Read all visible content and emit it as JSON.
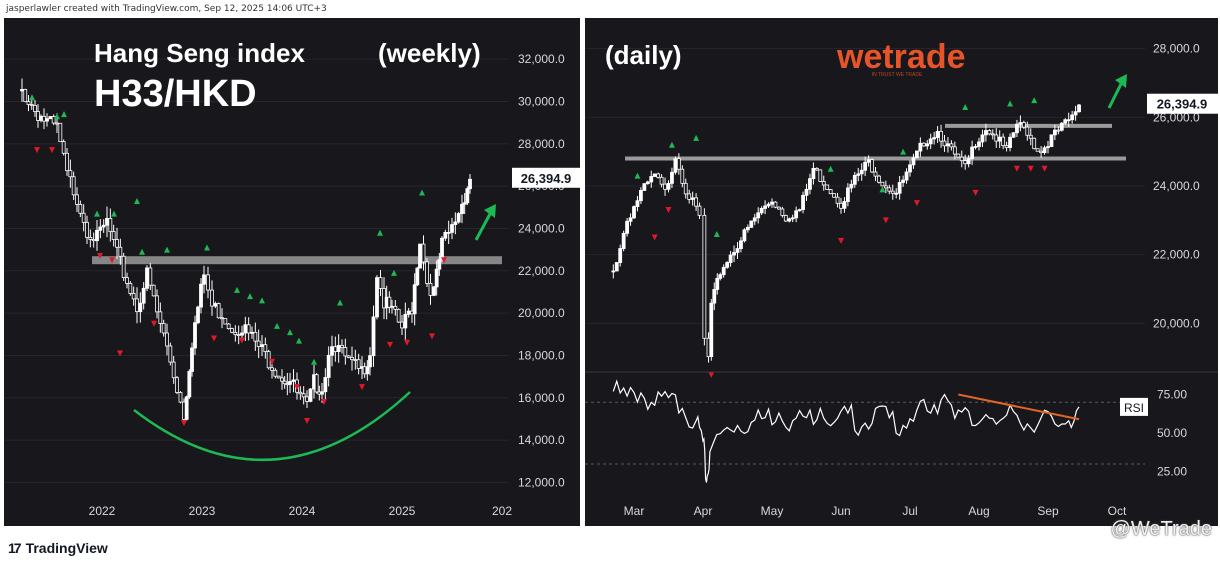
{
  "credit": "jasperlawler created with TradingView.com, Sep 12, 2025 14:06 UTC+3",
  "footer": {
    "brand": "TradingView",
    "watermark": "@WeTrade"
  },
  "logo": {
    "text": "wetrade",
    "tagline": "IN TRUST WE TRADE",
    "color": "#e8542a"
  },
  "colors": {
    "background": "#17171c",
    "candle": "#ffffff",
    "support": "#9a9a9a",
    "arc": "#1db954",
    "arrow": "#1db954",
    "trendline": "#e0662a",
    "up_marker": "#1db954",
    "down_marker": "#e0182a",
    "text": "#ffffff"
  },
  "chart_data": [
    {
      "type": "candlestick",
      "title": "Hang Seng index",
      "subtitle": "H33/HKD",
      "timeframe_label": "(weekly)",
      "x_ticks": [
        "2022",
        "2023",
        "2024",
        "2025",
        "202"
      ],
      "y_ticks": [
        "32,000.0",
        "30,000.0",
        "28,000.0",
        "26,000.0",
        "24,000.0",
        "22,000.0",
        "20,000.0",
        "18,000.0",
        "16,000.0",
        "14,000.0",
        "12,000.0"
      ],
      "ylim": [
        11500,
        33000
      ],
      "last_price": 26394.9,
      "last_price_label": "26,394.9",
      "support_level": 22500,
      "series": [
        {
          "x": [
            2021.2,
            2021.33,
            2021.45,
            2021.55,
            2021.65,
            2021.75,
            2021.85,
            2021.95,
            2022.05,
            2022.15,
            2022.25,
            2022.35,
            2022.45,
            2022.55,
            2022.65,
            2022.75,
            2022.82,
            2022.9,
            2023.02,
            2023.1,
            2023.2,
            2023.3,
            2023.4,
            2023.5,
            2023.6,
            2023.7,
            2023.8,
            2023.88,
            2023.95,
            2024.05,
            2024.12,
            2024.2,
            2024.3,
            2024.4,
            2024.5,
            2024.6,
            2024.68,
            2024.75,
            2024.82,
            2024.9,
            2025.0,
            2025.1,
            2025.18,
            2025.25,
            2025.32,
            2025.4,
            2025.5,
            2025.6,
            2025.68
          ],
          "y": [
            30500,
            29600,
            29000,
            28700,
            26500,
            25500,
            24000,
            23500,
            24300,
            22700,
            21500,
            20300,
            21800,
            20000,
            18400,
            16500,
            15200,
            18700,
            21800,
            20300,
            20000,
            19300,
            19400,
            18800,
            18200,
            17600,
            17000,
            16800,
            16200,
            15500,
            16700,
            16500,
            18800,
            18000,
            17500,
            17200,
            18200,
            21900,
            20500,
            20000,
            19300,
            20300,
            23500,
            21500,
            21000,
            23200,
            24000,
            25200,
            26394.9
          ]
        }
      ]
    },
    {
      "type": "candlestick",
      "timeframe_label": "(daily)",
      "x_ticks": [
        "Mar",
        "Apr",
        "May",
        "Jun",
        "Jul",
        "Aug",
        "Sep",
        "Oct"
      ],
      "y_ticks": [
        "28,000.0",
        "26,000.0",
        "24,000.0",
        "22,000.0",
        "20,000.0"
      ],
      "ylim": [
        18700,
        28600
      ],
      "last_price": 26394.9,
      "last_price_label": "26,394.9",
      "resistance_levels": [
        24800,
        25750
      ],
      "series": [
        {
          "x": [
            2.7,
            2.9,
            3.1,
            3.3,
            3.45,
            3.6,
            3.75,
            3.95,
            4.02,
            4.08,
            4.12,
            4.25,
            4.4,
            4.6,
            4.8,
            5.0,
            5.2,
            5.4,
            5.6,
            5.8,
            6.0,
            6.2,
            6.4,
            6.6,
            6.8,
            7.0,
            7.2,
            7.4,
            7.6,
            7.8,
            7.95,
            8.1,
            8.25,
            8.4,
            8.55,
            8.7,
            8.8,
            8.9,
            9.0,
            9.1,
            9.2,
            9.35,
            9.45
          ],
          "y": [
            21500,
            23000,
            23800,
            24300,
            23800,
            24900,
            23900,
            23100,
            19500,
            19000,
            20500,
            21500,
            22000,
            22600,
            23200,
            23600,
            23100,
            23300,
            24500,
            24000,
            23500,
            24200,
            24700,
            24100,
            23800,
            24500,
            25300,
            25600,
            25000,
            24500,
            25300,
            25700,
            25400,
            25000,
            25800,
            25600,
            25200,
            25000,
            25300,
            25500,
            25700,
            26000,
            26394.9
          ]
        }
      ],
      "rsi": {
        "label": "RSI",
        "y_ticks": [
          "75.00",
          "50.00",
          "25.00"
        ],
        "ylim": [
          8,
          87
        ],
        "bands": [
          70,
          30
        ],
        "x": [
          2.7,
          2.9,
          3.1,
          3.3,
          3.5,
          3.7,
          3.9,
          4.0,
          4.05,
          4.1,
          4.3,
          4.5,
          4.7,
          4.9,
          5.1,
          5.3,
          5.5,
          5.7,
          5.9,
          6.1,
          6.3,
          6.5,
          6.7,
          6.9,
          7.1,
          7.3,
          7.5,
          7.7,
          7.9,
          8.1,
          8.3,
          8.5,
          8.7,
          8.9,
          9.1,
          9.3,
          9.45
        ],
        "values": [
          77,
          74,
          76,
          68,
          73,
          66,
          58,
          45,
          18,
          38,
          52,
          55,
          57,
          60,
          63,
          58,
          60,
          66,
          57,
          63,
          54,
          66,
          60,
          55,
          65,
          63,
          75,
          65,
          55,
          62,
          58,
          64,
          56,
          60,
          56,
          58,
          67
        ]
      }
    }
  ]
}
